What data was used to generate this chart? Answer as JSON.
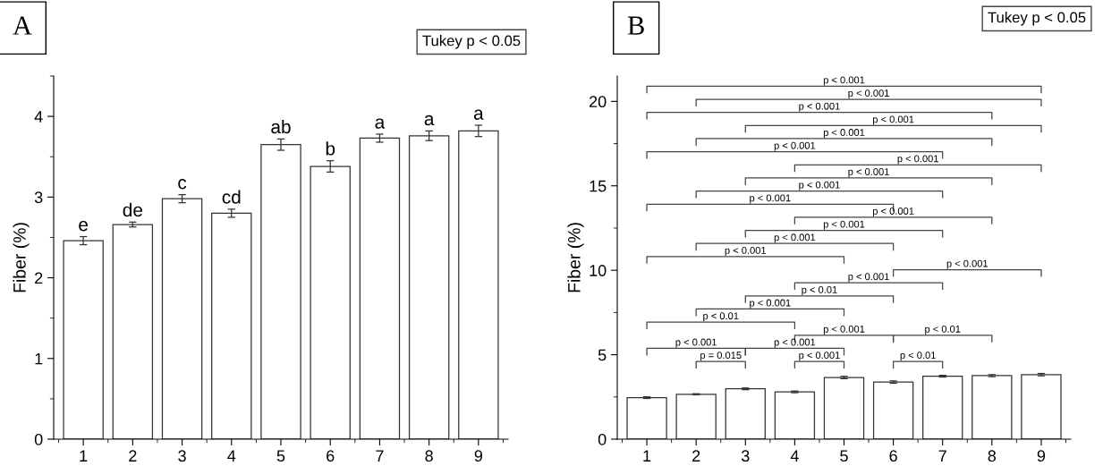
{
  "chart_data": [
    {
      "type": "bar",
      "title": "A",
      "categories": [
        "1",
        "2",
        "3",
        "4",
        "5",
        "6",
        "7",
        "8",
        "9"
      ],
      "values": [
        2.46,
        2.66,
        2.98,
        2.8,
        3.65,
        3.38,
        3.73,
        3.76,
        3.82
      ],
      "errors": [
        0.05,
        0.03,
        0.05,
        0.05,
        0.07,
        0.07,
        0.05,
        0.06,
        0.07
      ],
      "color": "#ffffff",
      "ylabel": "Fiber (%)",
      "ylim": [
        0,
        4.5
      ],
      "yticks": [
        0,
        1,
        2,
        3,
        4
      ],
      "grid": false,
      "annotations": [
        "Tukey p < 0.05",
        {
          "text": "e",
          "x": "1",
          "y": 2.51
        },
        {
          "text": "de",
          "x": "2",
          "y": 2.69
        },
        {
          "text": "c",
          "x": "3",
          "y": 3.03
        },
        {
          "text": "cd",
          "x": "4",
          "y": 2.85
        },
        {
          "text": "ab",
          "x": "5",
          "y": 3.72
        },
        {
          "text": "b",
          "x": "6",
          "y": 3.45
        },
        {
          "text": "a",
          "x": "7",
          "y": 3.78
        },
        {
          "text": "a",
          "x": "8",
          "y": 3.82
        },
        {
          "text": "a",
          "x": "9",
          "y": 3.89
        }
      ]
    },
    {
      "type": "bar",
      "title": "B",
      "categories": [
        "1",
        "2",
        "3",
        "4",
        "5",
        "6",
        "7",
        "8",
        "9"
      ],
      "values": [
        2.46,
        2.66,
        2.98,
        2.8,
        3.65,
        3.38,
        3.73,
        3.76,
        3.82
      ],
      "errors": [
        0.05,
        0.03,
        0.05,
        0.05,
        0.07,
        0.07,
        0.05,
        0.06,
        0.07
      ],
      "color": "#ffffff",
      "ylabel": "Fiber (%)",
      "ylim": [
        0,
        21.5
      ],
      "yticks": [
        0,
        5,
        10,
        15,
        20
      ],
      "grid": false,
      "annotations": [
        "Tukey p < 0.05",
        "p < 0.001",
        "p < 0.001",
        "p < 0.001",
        "p < 0.001",
        "p < 0.001",
        "p < 0.001",
        "p < 0.001",
        "p < 0.001",
        "p < 0.001",
        "p < 0.001",
        "p < 0.001",
        "p < 0.001",
        "p < 0.001",
        "p < 0.001",
        "p < 0.001",
        "p < 0.001",
        "p < 0.01",
        "p < 0.001",
        "p < 0.01",
        "p < 0.001",
        "p < 0.01",
        "p < 0.001",
        "p < 0.001",
        "p = 0.015",
        "p < 0.001",
        "p < 0.01"
      ]
    }
  ]
}
